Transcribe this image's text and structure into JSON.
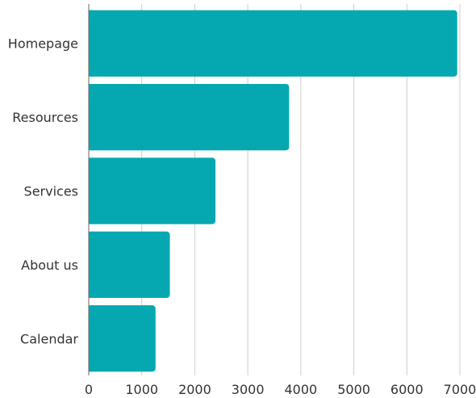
{
  "chart_data": {
    "type": "bar",
    "orientation": "horizontal",
    "categories": [
      "Homepage",
      "Resources",
      "Services",
      "About us",
      "Calendar"
    ],
    "values": [
      6950,
      3780,
      2390,
      1530,
      1260
    ],
    "xlim": [
      0,
      7000
    ],
    "xticks": [
      0,
      1000,
      2000,
      3000,
      4000,
      5000,
      6000,
      7000
    ],
    "tick_labels": [
      "0",
      "1000",
      "2000",
      "3000",
      "4000",
      "5000",
      "6000",
      "7000"
    ],
    "grid": true,
    "legend": "none",
    "bar_color": "#05a8b0"
  }
}
